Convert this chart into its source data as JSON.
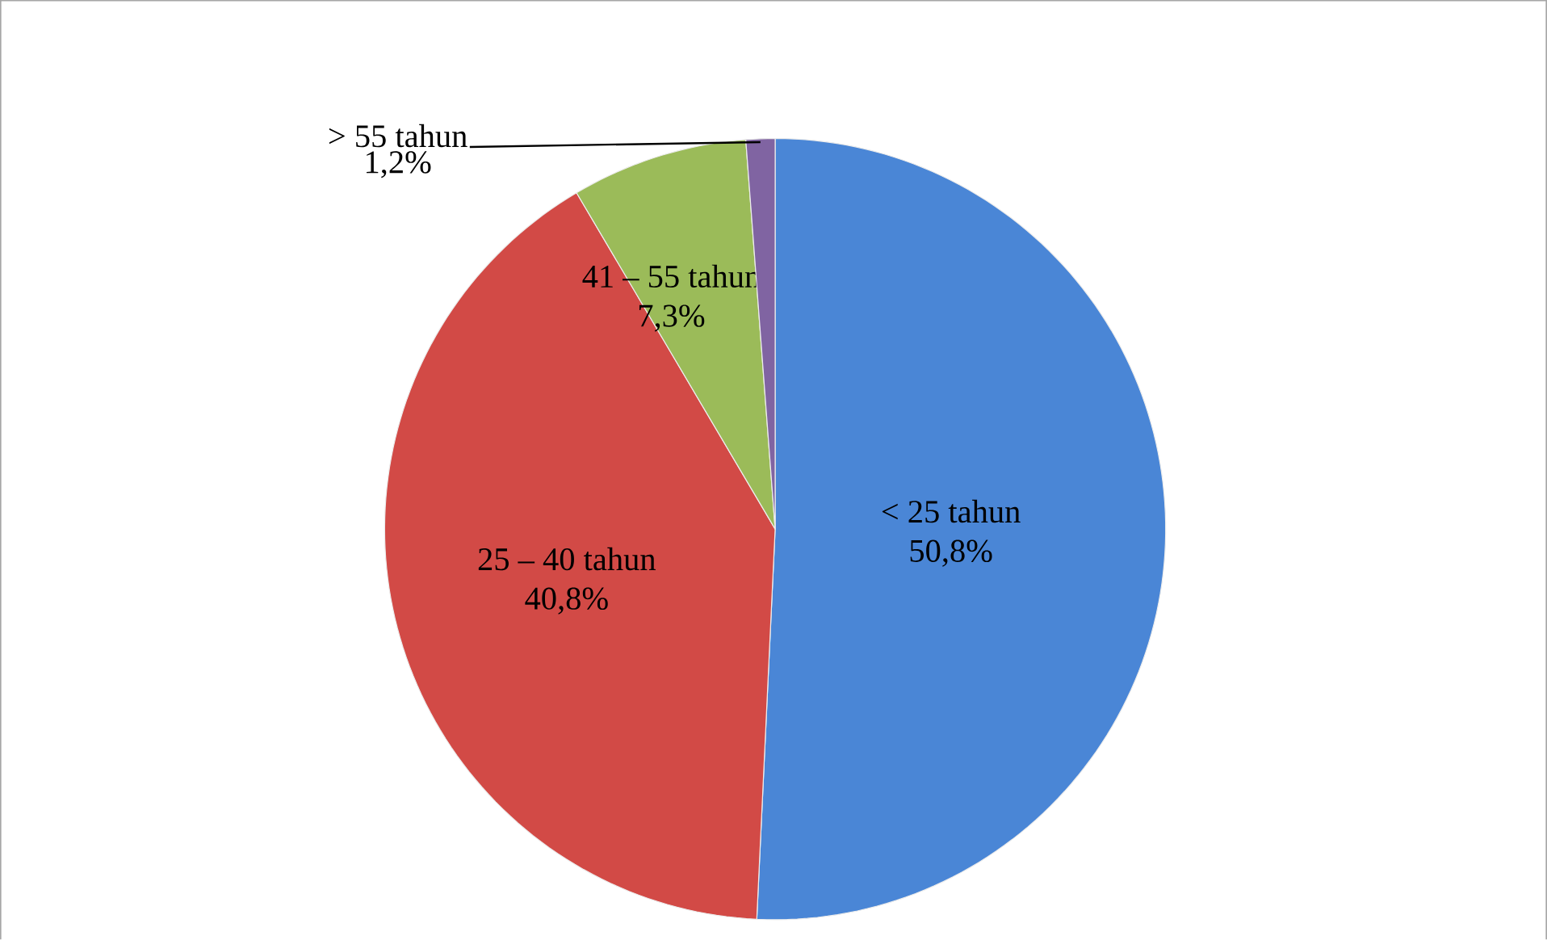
{
  "chart_data": {
    "type": "pie",
    "categories": [
      "< 25 tahun",
      "25 – 40 tahun",
      "41 – 55 tahun",
      "> 55 tahun"
    ],
    "values": [
      50.8,
      40.8,
      7.3,
      1.2
    ],
    "value_labels": [
      "50,8%",
      "40,8%",
      "7,3%",
      "1,2%"
    ],
    "colors": [
      "#4a86d6",
      "#d24a46",
      "#9bbb59",
      "#8064a2"
    ]
  }
}
